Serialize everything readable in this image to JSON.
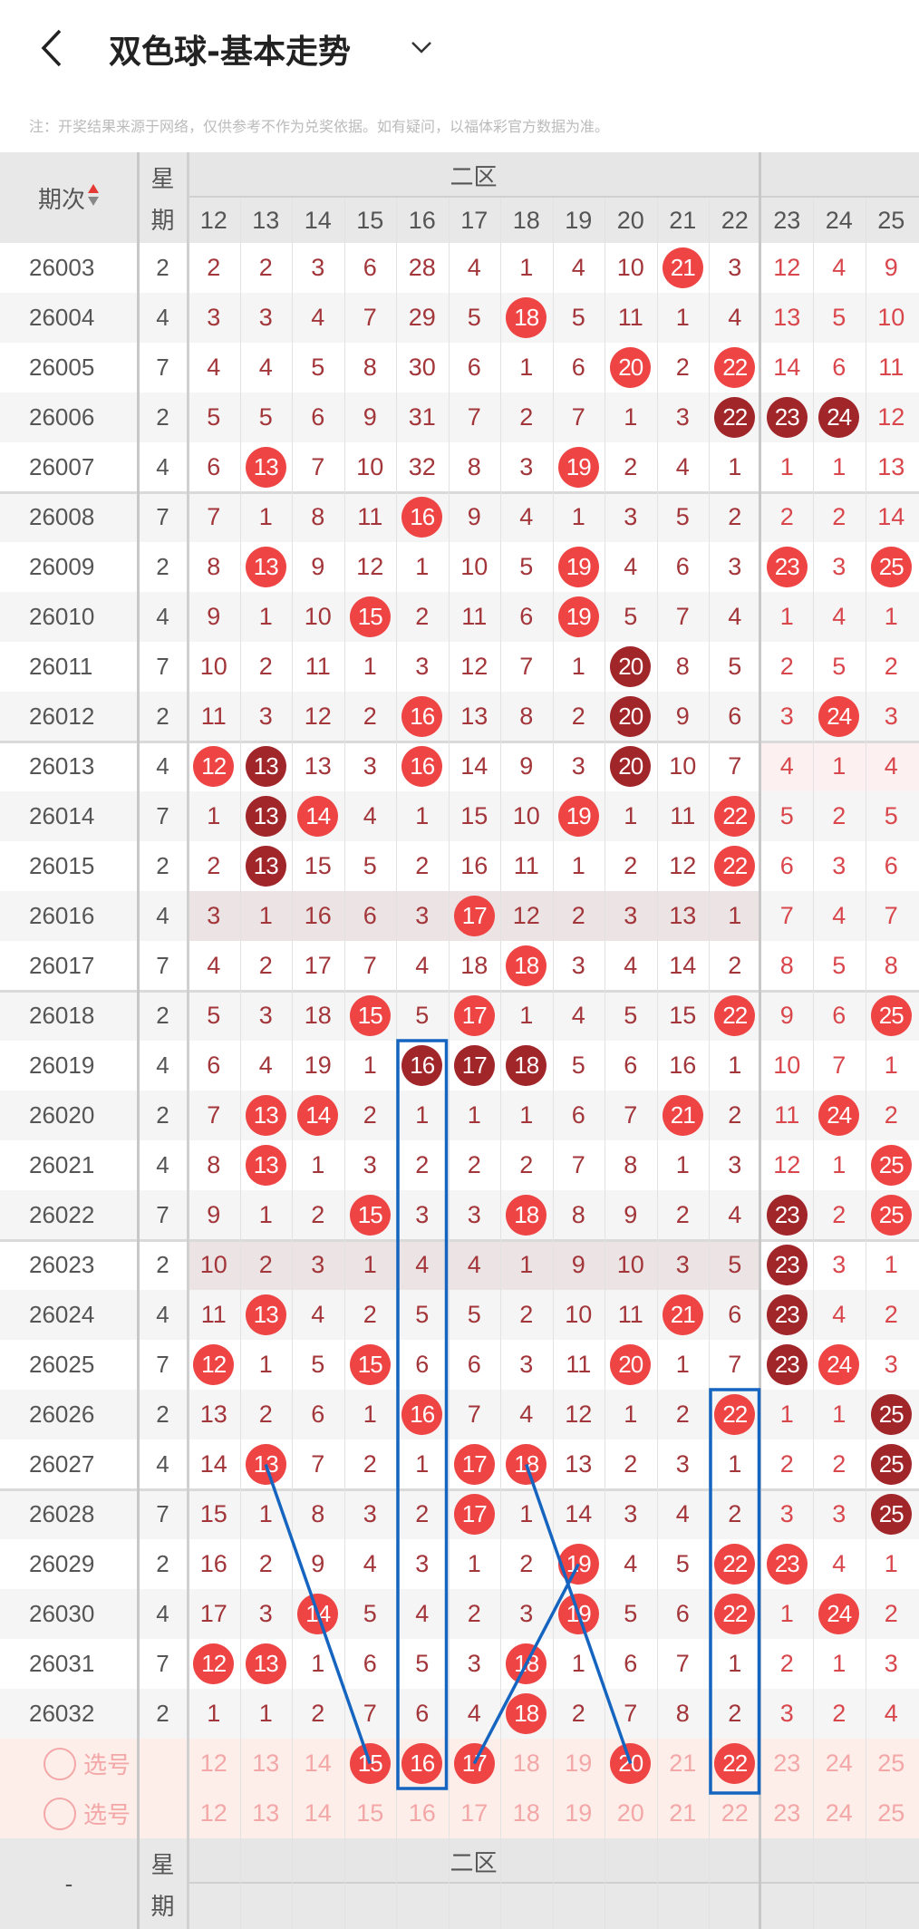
{
  "header": {
    "title": "双色球-基本走势",
    "back_icon": "chevron-left-icon",
    "dropdown_icon": "chevron-down-icon"
  },
  "note": "注：开奖结果来源于网络，仅供参考不作为兑奖依据。如有疑问，以福体彩官方数据为准。",
  "table": {
    "period_header": "期次",
    "week_header_top": "星",
    "week_header_bottom": "期",
    "zone_header": "二区",
    "columns": [
      12,
      13,
      14,
      15,
      16,
      17,
      18,
      19,
      20,
      21,
      22,
      23,
      24,
      25
    ],
    "colors": {
      "ball": "#ee4444",
      "ball_consecutive": "#a1262a",
      "miss_text": "#a3363a",
      "trend_line": "#1565c0"
    },
    "rows": [
      {
        "period": "26003",
        "week": "2",
        "cells": [
          2,
          2,
          3,
          6,
          28,
          4,
          1,
          4,
          10,
          21,
          3,
          12,
          4,
          9
        ],
        "dark": []
      },
      {
        "period": "26004",
        "week": "4",
        "cells": [
          3,
          3,
          4,
          7,
          29,
          5,
          18,
          5,
          11,
          1,
          4,
          13,
          5,
          10
        ],
        "dark": []
      },
      {
        "period": "26005",
        "week": "7",
        "cells": [
          4,
          4,
          5,
          8,
          30,
          6,
          1,
          6,
          20,
          2,
          22,
          14,
          6,
          11
        ],
        "dark": []
      },
      {
        "period": "26006",
        "week": "2",
        "cells": [
          5,
          5,
          6,
          9,
          31,
          7,
          2,
          7,
          1,
          3,
          22,
          23,
          24,
          12
        ],
        "dark": [
          22,
          23,
          24
        ]
      },
      {
        "period": "26007",
        "week": "4",
        "cells": [
          6,
          13,
          7,
          10,
          32,
          8,
          3,
          19,
          2,
          4,
          1,
          1,
          1,
          13
        ],
        "dark": []
      },
      {
        "period": "26008",
        "week": "7",
        "cells": [
          7,
          1,
          8,
          11,
          16,
          9,
          4,
          1,
          3,
          5,
          2,
          2,
          2,
          14
        ],
        "dark": []
      },
      {
        "period": "26009",
        "week": "2",
        "cells": [
          8,
          13,
          9,
          12,
          1,
          10,
          5,
          19,
          4,
          6,
          3,
          23,
          3,
          25
        ],
        "dark": []
      },
      {
        "period": "26010",
        "week": "4",
        "cells": [
          9,
          1,
          10,
          15,
          2,
          11,
          6,
          19,
          5,
          7,
          4,
          1,
          4,
          1
        ],
        "dark": []
      },
      {
        "period": "26011",
        "week": "7",
        "cells": [
          10,
          2,
          11,
          1,
          3,
          12,
          7,
          1,
          20,
          8,
          5,
          2,
          5,
          2
        ],
        "dark": [
          20
        ]
      },
      {
        "period": "26012",
        "week": "2",
        "cells": [
          11,
          3,
          12,
          2,
          16,
          13,
          8,
          2,
          20,
          9,
          6,
          3,
          24,
          3
        ],
        "dark": [
          20
        ]
      },
      {
        "period": "26013",
        "week": "4",
        "cells": [
          12,
          13,
          13,
          3,
          16,
          14,
          9,
          3,
          20,
          10,
          7,
          4,
          1,
          4
        ],
        "dark": [
          13,
          20
        ]
      },
      {
        "period": "26014",
        "week": "7",
        "cells": [
          1,
          13,
          14,
          4,
          1,
          15,
          10,
          19,
          1,
          11,
          22,
          5,
          2,
          5
        ],
        "dark": [
          13
        ]
      },
      {
        "period": "26015",
        "week": "2",
        "cells": [
          2,
          13,
          15,
          5,
          2,
          16,
          11,
          1,
          2,
          12,
          22,
          6,
          3,
          6
        ],
        "dark": [
          13
        ]
      },
      {
        "period": "26016",
        "week": "4",
        "cells": [
          3,
          1,
          16,
          6,
          3,
          17,
          12,
          2,
          3,
          13,
          1,
          7,
          4,
          7
        ],
        "dark": []
      },
      {
        "period": "26017",
        "week": "7",
        "cells": [
          4,
          2,
          17,
          7,
          4,
          18,
          18,
          3,
          4,
          14,
          2,
          8,
          5,
          8
        ],
        "dark": []
      },
      {
        "period": "26018",
        "week": "2",
        "cells": [
          5,
          3,
          18,
          15,
          5,
          17,
          1,
          4,
          5,
          15,
          22,
          9,
          6,
          25
        ],
        "dark": []
      },
      {
        "period": "26019",
        "week": "4",
        "cells": [
          6,
          4,
          19,
          1,
          16,
          17,
          18,
          5,
          6,
          16,
          1,
          10,
          7,
          1
        ],
        "dark": [
          16,
          17,
          18
        ]
      },
      {
        "period": "26020",
        "week": "2",
        "cells": [
          7,
          13,
          14,
          2,
          1,
          1,
          1,
          6,
          7,
          21,
          2,
          11,
          24,
          2
        ],
        "dark": []
      },
      {
        "period": "26021",
        "week": "4",
        "cells": [
          8,
          13,
          1,
          3,
          2,
          2,
          2,
          7,
          8,
          1,
          3,
          12,
          1,
          25
        ],
        "dark": []
      },
      {
        "period": "26022",
        "week": "7",
        "cells": [
          9,
          1,
          2,
          15,
          3,
          3,
          18,
          8,
          9,
          2,
          4,
          23,
          2,
          25
        ],
        "dark": [
          23
        ]
      },
      {
        "period": "26023",
        "week": "2",
        "cells": [
          10,
          2,
          3,
          1,
          4,
          4,
          1,
          9,
          10,
          3,
          5,
          23,
          3,
          1
        ],
        "dark": [
          23
        ]
      },
      {
        "period": "26024",
        "week": "4",
        "cells": [
          11,
          13,
          4,
          2,
          5,
          5,
          2,
          10,
          11,
          21,
          6,
          23,
          4,
          2
        ],
        "dark": [
          23
        ]
      },
      {
        "period": "26025",
        "week": "7",
        "cells": [
          12,
          1,
          5,
          15,
          6,
          6,
          3,
          11,
          20,
          1,
          7,
          23,
          24,
          3
        ],
        "dark": [
          23
        ]
      },
      {
        "period": "26026",
        "week": "2",
        "cells": [
          13,
          2,
          6,
          1,
          16,
          7,
          4,
          12,
          1,
          2,
          22,
          1,
          1,
          25
        ],
        "dark": [
          25
        ]
      },
      {
        "period": "26027",
        "week": "4",
        "cells": [
          14,
          13,
          7,
          2,
          1,
          17,
          18,
          13,
          2,
          3,
          1,
          2,
          2,
          25
        ],
        "dark": [
          25
        ]
      },
      {
        "period": "26028",
        "week": "7",
        "cells": [
          15,
          1,
          8,
          3,
          2,
          17,
          1,
          14,
          3,
          4,
          2,
          3,
          3,
          25
        ],
        "dark": [
          25
        ]
      },
      {
        "period": "26029",
        "week": "2",
        "cells": [
          16,
          2,
          9,
          4,
          3,
          1,
          2,
          19,
          4,
          5,
          22,
          23,
          4,
          1
        ],
        "dark": []
      },
      {
        "period": "26030",
        "week": "4",
        "cells": [
          17,
          3,
          14,
          5,
          4,
          2,
          3,
          19,
          5,
          6,
          22,
          1,
          24,
          2
        ],
        "dark": []
      },
      {
        "period": "26031",
        "week": "7",
        "cells": [
          12,
          13,
          1,
          6,
          5,
          3,
          18,
          1,
          6,
          7,
          1,
          2,
          1,
          3
        ],
        "dark": []
      },
      {
        "period": "26032",
        "week": "2",
        "cells": [
          1,
          1,
          2,
          7,
          6,
          4,
          18,
          2,
          7,
          8,
          2,
          3,
          2,
          4
        ],
        "dark": []
      }
    ],
    "select_rows": [
      {
        "label": "选号",
        "selected": [
          15,
          16,
          17,
          20,
          22
        ]
      },
      {
        "label": "选号",
        "selected": []
      }
    ],
    "footer_period": "-",
    "boxes": [
      {
        "number": 16,
        "from_period": "26019",
        "to": "select-1"
      },
      {
        "number": 22,
        "from_period": "26026",
        "to": "select-1"
      }
    ],
    "trend_lines": [
      {
        "from": {
          "period": "26027",
          "number": 13
        },
        "to": {
          "select": 1,
          "number": 15
        }
      },
      {
        "from": {
          "period": "26027",
          "number": 18
        },
        "to": {
          "select": 1,
          "number": 20
        }
      },
      {
        "from": {
          "period": "26029",
          "number": 19
        },
        "to": {
          "select": 1,
          "number": 17
        }
      }
    ]
  }
}
